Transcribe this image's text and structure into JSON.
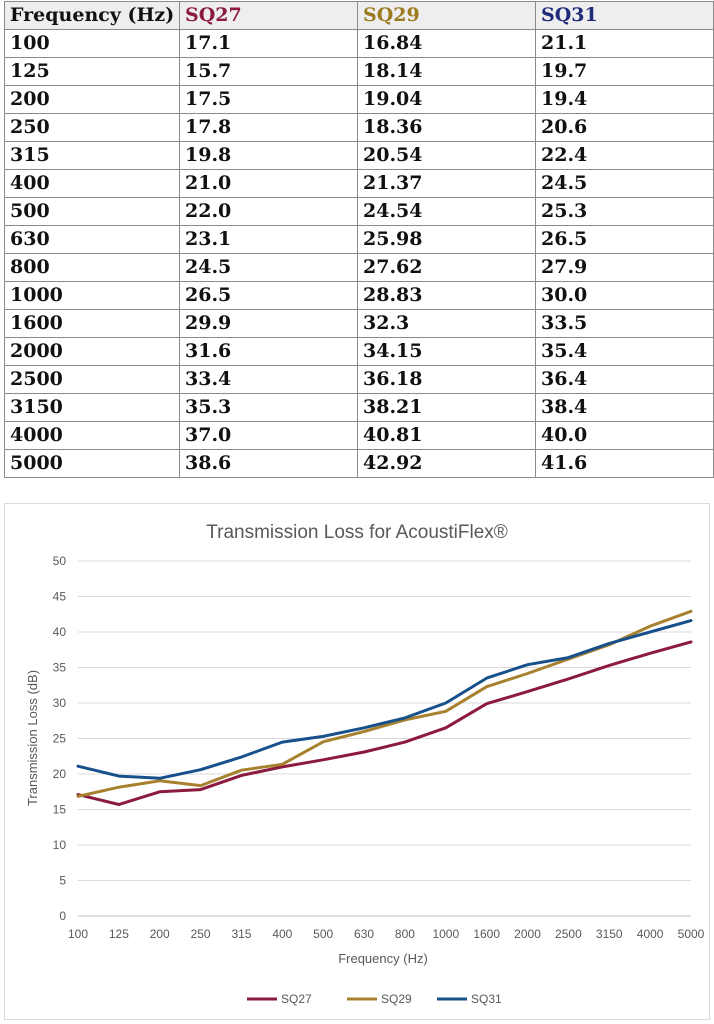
{
  "table": {
    "headers": [
      "Frequency (Hz)",
      "SQ27",
      "SQ29",
      "SQ31"
    ],
    "header_colors": [
      "#111111",
      "#8B1A3E",
      "#9C7A1E",
      "#1F2A7A"
    ],
    "rows": [
      [
        "100",
        "17.1",
        "16.84",
        "21.1"
      ],
      [
        "125",
        "15.7",
        "18.14",
        "19.7"
      ],
      [
        "200",
        "17.5",
        "19.04",
        "19.4"
      ],
      [
        "250",
        "17.8",
        "18.36",
        "20.6"
      ],
      [
        "315",
        "19.8",
        "20.54",
        "22.4"
      ],
      [
        "400",
        "21.0",
        "21.37",
        "24.5"
      ],
      [
        "500",
        "22.0",
        "24.54",
        "25.3"
      ],
      [
        "630",
        "23.1",
        "25.98",
        "26.5"
      ],
      [
        "800",
        "24.5",
        "27.62",
        "27.9"
      ],
      [
        "1000",
        "26.5",
        "28.83",
        "30.0"
      ],
      [
        "1600",
        "29.9",
        "32.3",
        "33.5"
      ],
      [
        "2000",
        "31.6",
        "34.15",
        "35.4"
      ],
      [
        "2500",
        "33.4",
        "36.18",
        "36.4"
      ],
      [
        "3150",
        "35.3",
        "38.21",
        "38.4"
      ],
      [
        "4000",
        "37.0",
        "40.81",
        "40.0"
      ],
      [
        "5000",
        "38.6",
        "42.92",
        "41.6"
      ]
    ]
  },
  "chart_data": {
    "type": "line",
    "title": "Transmission Loss for AcoustiFlex®",
    "xlabel": "Frequency (Hz)",
    "ylabel": "Transmission Loss (dB)",
    "categories": [
      "100",
      "125",
      "200",
      "250",
      "315",
      "400",
      "500",
      "630",
      "800",
      "1000",
      "1600",
      "2000",
      "2500",
      "3150",
      "4000",
      "5000"
    ],
    "ylim": [
      0,
      50
    ],
    "yticks": [
      0,
      5,
      10,
      15,
      20,
      25,
      30,
      35,
      40,
      45,
      50
    ],
    "grid": true,
    "legend": "bottom",
    "series": [
      {
        "name": "SQ27",
        "color": "#8B1A3E",
        "values": [
          17.1,
          15.7,
          17.5,
          17.8,
          19.8,
          21.0,
          22.0,
          23.1,
          24.5,
          26.5,
          29.9,
          31.6,
          33.4,
          35.3,
          37.0,
          38.6
        ]
      },
      {
        "name": "SQ29",
        "color": "#A8812F",
        "values": [
          16.84,
          18.14,
          19.04,
          18.36,
          20.54,
          21.37,
          24.54,
          25.98,
          27.62,
          28.83,
          32.3,
          34.15,
          36.18,
          38.21,
          40.81,
          42.92
        ]
      },
      {
        "name": "SQ31",
        "color": "#17508A",
        "values": [
          21.1,
          19.7,
          19.4,
          20.6,
          22.4,
          24.5,
          25.3,
          26.5,
          27.9,
          30.0,
          33.5,
          35.4,
          36.4,
          38.4,
          40.0,
          41.6
        ]
      }
    ]
  }
}
